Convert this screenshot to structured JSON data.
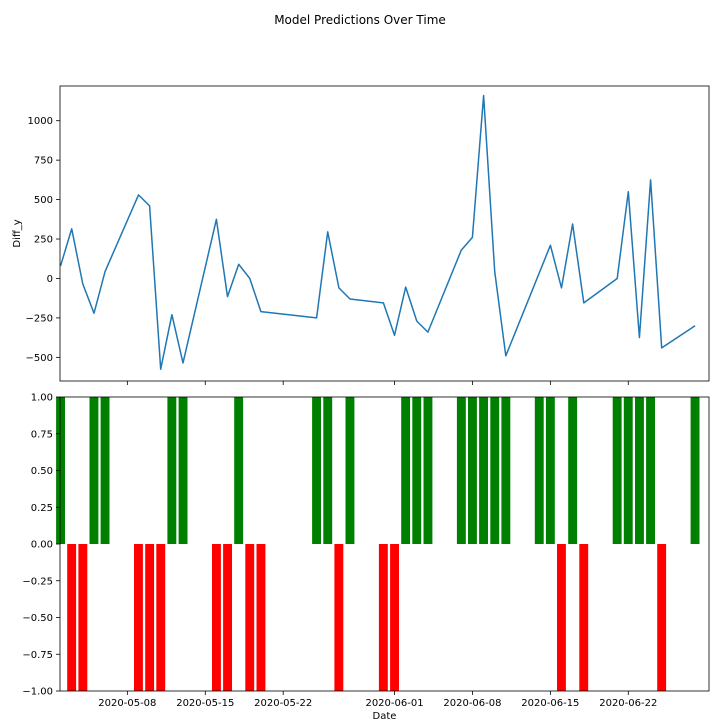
{
  "title": "Model Predictions Over Time",
  "chart_data": [
    {
      "type": "line",
      "ylabel": "Diff_y",
      "xlabel": "",
      "x_range": [
        "2020-05-02",
        "2020-06-29"
      ],
      "ylim": [
        -650,
        1220
      ],
      "yticks": [
        -500,
        -250,
        0,
        250,
        500,
        750,
        1000
      ],
      "ytick_labels": [
        "−500",
        "−250",
        "0",
        "250",
        "500",
        "750",
        "1000"
      ],
      "color": "#1f77b4",
      "series": [
        {
          "name": "Diff_y",
          "x": [
            "2020-05-02",
            "2020-05-03",
            "2020-05-04",
            "2020-05-05",
            "2020-05-06",
            "2020-05-09",
            "2020-05-10",
            "2020-05-11",
            "2020-05-12",
            "2020-05-13",
            "2020-05-16",
            "2020-05-17",
            "2020-05-18",
            "2020-05-19",
            "2020-05-20",
            "2020-05-25",
            "2020-05-26",
            "2020-05-27",
            "2020-05-28",
            "2020-05-31",
            "2020-06-01",
            "2020-06-02",
            "2020-06-03",
            "2020-06-04",
            "2020-06-07",
            "2020-06-08",
            "2020-06-09",
            "2020-06-10",
            "2020-06-11",
            "2020-06-15",
            "2020-06-16",
            "2020-06-17",
            "2020-06-18",
            "2020-06-21",
            "2020-06-22",
            "2020-06-23",
            "2020-06-24",
            "2020-06-25",
            "2020-06-28"
          ],
          "values": [
            80,
            315,
            -35,
            -220,
            45,
            530,
            460,
            -575,
            -230,
            -535,
            375,
            -115,
            90,
            0,
            -210,
            -250,
            295,
            -60,
            -130,
            -155,
            -360,
            -55,
            -270,
            -340,
            180,
            260,
            1160,
            45,
            -490,
            210,
            -60,
            345,
            -155,
            0,
            550,
            -375,
            625,
            -440,
            -300
          ]
        }
      ]
    },
    {
      "type": "bar",
      "xlabel": "Date",
      "ylabel": "",
      "ylim": [
        -1,
        1
      ],
      "yticks": [
        -1,
        -0.75,
        -0.5,
        -0.25,
        0,
        0.25,
        0.5,
        0.75,
        1
      ],
      "ytick_labels": [
        "−1.00",
        "−0.75",
        "−0.50",
        "−0.25",
        "0.00",
        "0.25",
        "0.50",
        "0.75",
        "1.00"
      ],
      "xticks": [
        "2020-05-08",
        "2020-05-15",
        "2020-05-22",
        "2020-06-01",
        "2020-06-08",
        "2020-06-15",
        "2020-06-22"
      ],
      "colors": {
        "positive": "#008000",
        "negative": "#ff0000"
      },
      "x": [
        "2020-05-02",
        "2020-05-03",
        "2020-05-04",
        "2020-05-05",
        "2020-05-06",
        "2020-05-09",
        "2020-05-10",
        "2020-05-11",
        "2020-05-12",
        "2020-05-13",
        "2020-05-16",
        "2020-05-17",
        "2020-05-18",
        "2020-05-19",
        "2020-05-20",
        "2020-05-25",
        "2020-05-26",
        "2020-05-27",
        "2020-05-28",
        "2020-05-31",
        "2020-06-01",
        "2020-06-02",
        "2020-06-03",
        "2020-06-04",
        "2020-06-07",
        "2020-06-08",
        "2020-06-09",
        "2020-06-10",
        "2020-06-11",
        "2020-06-14",
        "2020-06-15",
        "2020-06-16",
        "2020-06-17",
        "2020-06-18",
        "2020-06-21",
        "2020-06-22",
        "2020-06-23",
        "2020-06-24",
        "2020-06-25",
        "2020-06-28"
      ],
      "values": [
        1,
        -1,
        -1,
        1,
        1,
        -1,
        -1,
        -1,
        1,
        1,
        -1,
        -1,
        1,
        -1,
        -1,
        1,
        1,
        -1,
        1,
        -1,
        -1,
        1,
        1,
        1,
        1,
        1,
        1,
        1,
        1,
        1,
        1,
        -1,
        1,
        -1,
        1,
        1,
        1,
        1,
        -1,
        1
      ]
    }
  ]
}
